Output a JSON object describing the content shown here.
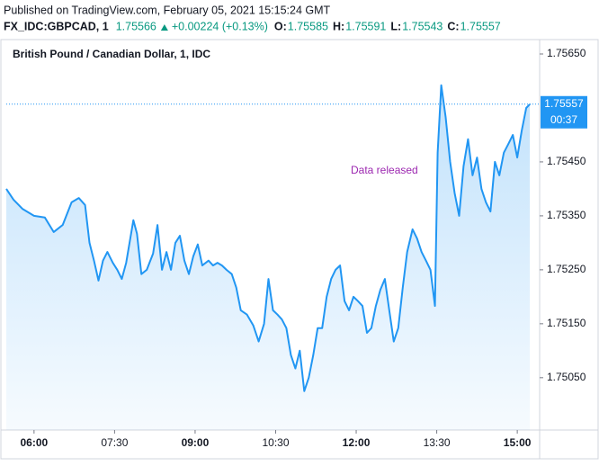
{
  "header": {
    "published": "Published on TradingView.com, February 05, 2021 15:15:24 GMT",
    "symbol": "FX_IDC:GBPCAD, 1",
    "price": "1.75566",
    "change": "+0.00224 (+0.13%)",
    "ohlc": [
      {
        "label": "O:",
        "value": "1.75585"
      },
      {
        "label": "H:",
        "value": "1.75591"
      },
      {
        "label": "L:",
        "value": "1.75543"
      },
      {
        "label": "C:",
        "value": "1.75557"
      }
    ]
  },
  "chart_data": {
    "type": "area",
    "title": "British Pound / Canadian Dollar, 1, IDC",
    "annotation": "Data released",
    "countdown": "00:37",
    "last_price": 1.75557,
    "color": "#2196f3",
    "grid": false,
    "x": [
      329,
      337,
      347,
      360,
      372,
      382,
      392,
      402,
      410,
      417,
      422,
      427,
      432,
      437,
      442,
      448,
      453,
      458,
      463,
      471,
      475,
      480,
      486,
      493,
      498,
      503,
      508,
      513,
      518,
      523,
      528,
      533,
      538,
      543,
      548,
      555,
      560,
      565,
      570,
      575,
      581,
      586,
      591,
      598,
      605,
      611,
      617,
      622,
      627,
      632,
      637,
      642,
      647,
      652,
      657,
      662,
      667,
      672,
      677,
      682,
      687,
      692,
      697,
      702,
      707,
      712,
      717,
      722,
      727,
      732,
      737,
      742,
      747,
      752,
      757,
      762,
      767,
      772,
      777,
      783,
      788,
      793,
      798,
      803,
      808,
      811,
      815,
      820,
      825,
      830,
      835,
      840,
      845,
      850,
      855,
      860,
      865,
      870,
      875,
      880,
      885,
      890,
      895,
      900,
      905,
      910,
      914
    ],
    "values": [
      1.754,
      1.7538,
      1.75363,
      1.7535,
      1.75347,
      1.7532,
      1.75333,
      1.75375,
      1.75383,
      1.7537,
      1.753,
      1.75267,
      1.7523,
      1.75267,
      1.75283,
      1.75263,
      1.7525,
      1.75233,
      1.75263,
      1.75342,
      1.75317,
      1.75242,
      1.7525,
      1.7528,
      1.75333,
      1.7525,
      1.75283,
      1.7525,
      1.753,
      1.75313,
      1.75267,
      1.75242,
      1.75275,
      1.75297,
      1.75258,
      1.75267,
      1.75258,
      1.75263,
      1.75258,
      1.7525,
      1.75242,
      1.75217,
      1.75175,
      1.75167,
      1.75147,
      1.75117,
      1.7515,
      1.75233,
      1.75175,
      1.75167,
      1.75158,
      1.75142,
      1.75092,
      1.75067,
      1.751,
      1.75025,
      1.7505,
      1.75092,
      1.75142,
      1.75142,
      1.752,
      1.75233,
      1.7525,
      1.75258,
      1.75192,
      1.75175,
      1.752,
      1.75192,
      1.75183,
      1.75133,
      1.75142,
      1.75183,
      1.75213,
      1.75233,
      1.75175,
      1.75117,
      1.75142,
      1.75217,
      1.75283,
      1.75325,
      1.75308,
      1.75283,
      1.75267,
      1.7525,
      1.75183,
      1.75467,
      1.75592,
      1.75533,
      1.7545,
      1.75392,
      1.7535,
      1.75442,
      1.75492,
      1.75425,
      1.75458,
      1.754,
      1.75375,
      1.75358,
      1.7545,
      1.75425,
      1.75467,
      1.75483,
      1.755,
      1.75458,
      1.75508,
      1.7555,
      1.75557
    ],
    "xlim": [
      329,
      925
    ],
    "xticks": [
      {
        "value": 360,
        "label": "06:00"
      },
      {
        "value": 450,
        "label": "07:30"
      },
      {
        "value": 540,
        "label": "09:00"
      },
      {
        "value": 630,
        "label": "10:30"
      },
      {
        "value": 720,
        "label": "12:00"
      },
      {
        "value": 810,
        "label": "13:30"
      },
      {
        "value": 900,
        "label": "15:00"
      }
    ],
    "ylim": [
      1.74953,
      1.75675
    ],
    "yticks": [
      {
        "value": 1.7505,
        "label": "1.75050"
      },
      {
        "value": 1.7515,
        "label": "1.75150"
      },
      {
        "value": 1.7525,
        "label": "1.75250"
      },
      {
        "value": 1.7535,
        "label": "1.75350"
      },
      {
        "value": 1.7545,
        "label": "1.75450"
      },
      {
        "value": 1.7565,
        "label": "1.75650"
      }
    ]
  }
}
